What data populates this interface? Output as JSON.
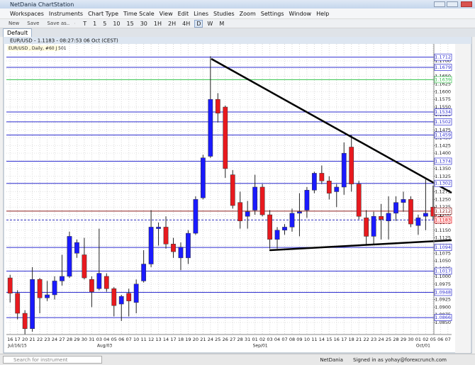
{
  "window_title": "NetDania ChartStation",
  "menu": [
    "Workspaces",
    "Instruments",
    "Chart Type",
    "Time Scale",
    "View",
    "Edit",
    "Lines",
    "Studies",
    "Zoom",
    "Settings",
    "Window",
    "Help"
  ],
  "toolbar": {
    "file_buttons": [
      "New",
      "Save",
      "Save as.."
    ],
    "timeframes": [
      "T",
      "1",
      "5",
      "10",
      "15",
      "30",
      "1H",
      "2H",
      "4H",
      "D",
      "W",
      "M"
    ]
  },
  "tab": "Default",
  "chart_data": {
    "type": "candlestick",
    "title": "EUR/USD - 1.1183 - 08:27:53 06 Oct (CEST)",
    "subtitle": "EUR/USD , Daily, #60 J 501",
    "categories": [
      "16",
      "17",
      "20",
      "21",
      "22",
      "23",
      "24",
      "27",
      "28",
      "29",
      "30",
      "31",
      "03",
      "04",
      "05",
      "06",
      "07",
      "10",
      "11",
      "12",
      "13",
      "14",
      "17",
      "18",
      "19",
      "20",
      "21",
      "24",
      "25",
      "26",
      "27",
      "28",
      "31",
      "01",
      "02",
      "03",
      "04",
      "07",
      "08",
      "09",
      "10",
      "11",
      "14",
      "15",
      "16",
      "17",
      "18",
      "21",
      "22",
      "23",
      "24",
      "25",
      "28",
      "29",
      "30",
      "01",
      "02",
      "05",
      "06",
      "07"
    ],
    "month_labels": [
      "Jul/16/15",
      null,
      null,
      null,
      null,
      null,
      null,
      null,
      null,
      null,
      null,
      null,
      "Aug/03",
      null,
      null,
      null,
      null,
      null,
      null,
      null,
      null,
      null,
      null,
      null,
      null,
      null,
      null,
      null,
      null,
      null,
      null,
      null,
      null,
      "Sep/01",
      null,
      null,
      null,
      null,
      null,
      null,
      null,
      null,
      null,
      null,
      null,
      null,
      null,
      null,
      null,
      null,
      null,
      null,
      null,
      null,
      null,
      "Oct/01",
      null,
      null,
      null,
      null
    ],
    "series": {
      "open": [
        1.0995,
        1.0945,
        1.088,
        1.083,
        1.099,
        1.093,
        1.094,
        1.0985,
        1.1,
        1.1075,
        1.107,
        1.099,
        1.096,
        1.1,
        1.096,
        1.091,
        1.0945,
        1.0915,
        1.0985,
        1.104,
        1.1155,
        1.116,
        1.1105,
        1.106,
        1.106,
        1.114,
        1.1255,
        1.139,
        1.1575,
        1.155,
        1.133,
        1.124,
        1.1195,
        1.1215,
        1.129,
        1.12,
        1.112,
        1.115,
        1.116,
        1.1205,
        1.1215,
        1.128,
        1.1335,
        1.131,
        1.1275,
        1.129,
        1.142,
        1.13,
        1.119,
        1.113,
        1.1195,
        1.118,
        1.1205,
        1.124,
        1.125,
        1.1165,
        1.1195,
        1.1225,
        1.1195,
        null
      ],
      "high": [
        1.1005,
        1.0955,
        1.089,
        1.103,
        1.0995,
        1.0985,
        1.1,
        1.107,
        1.1145,
        1.112,
        1.1125,
        1.1,
        1.1155,
        1.101,
        1.0965,
        1.094,
        1.096,
        1.099,
        1.1085,
        1.1215,
        1.1175,
        1.1195,
        1.1125,
        1.111,
        1.115,
        1.126,
        1.1395,
        1.1715,
        1.1595,
        1.1555,
        1.1345,
        1.1275,
        1.1245,
        1.133,
        1.13,
        1.1215,
        1.116,
        1.117,
        1.122,
        1.127,
        1.129,
        1.134,
        1.136,
        1.1325,
        1.13,
        1.1435,
        1.146,
        1.131,
        1.1215,
        1.121,
        1.1235,
        1.126,
        1.126,
        1.1275,
        1.126,
        1.12,
        1.1315,
        1.1295,
        1.1215,
        null
      ],
      "low": [
        1.0915,
        1.086,
        1.081,
        1.082,
        1.088,
        1.092,
        1.0925,
        1.097,
        1.0995,
        1.106,
        1.099,
        1.09,
        1.0955,
        1.095,
        1.087,
        1.0855,
        1.087,
        1.088,
        1.098,
        1.103,
        1.11,
        1.109,
        1.106,
        1.102,
        1.104,
        1.1135,
        1.125,
        1.1385,
        1.15,
        1.132,
        1.122,
        1.1155,
        1.1155,
        1.12,
        1.1195,
        1.109,
        1.109,
        1.1135,
        1.1145,
        1.113,
        1.119,
        1.127,
        1.13,
        1.125,
        1.1225,
        1.1265,
        1.1275,
        1.1185,
        1.11,
        1.1105,
        1.112,
        1.112,
        1.118,
        1.121,
        1.116,
        1.1135,
        1.115,
        1.1185,
        1.117,
        null
      ],
      "close": [
        1.0945,
        1.088,
        1.083,
        1.099,
        1.093,
        1.094,
        1.0985,
        1.1,
        1.113,
        1.111,
        1.0995,
        1.095,
        1.101,
        1.096,
        1.0905,
        1.0935,
        1.092,
        1.0975,
        1.104,
        1.116,
        1.116,
        1.1105,
        1.108,
        1.1095,
        1.114,
        1.125,
        1.1385,
        1.1575,
        1.153,
        1.135,
        1.123,
        1.118,
        1.121,
        1.129,
        1.12,
        1.112,
        1.115,
        1.116,
        1.1205,
        1.121,
        1.128,
        1.1335,
        1.131,
        1.127,
        1.129,
        1.14,
        1.13,
        1.1195,
        1.113,
        1.1195,
        1.1185,
        1.1205,
        1.124,
        1.125,
        1.117,
        1.119,
        1.1205,
        1.1195,
        1.1183,
        null
      ]
    },
    "up_color": "#1a1aff",
    "down_color": "#e8191e",
    "ylim": [
      1.0811,
      1.1755
    ],
    "yticks": [
      {
        "value": 1.085,
        "label": "1.0850"
      },
      1.0875,
      {
        "value": 1.09,
        "label": "1.0900"
      },
      1.0925,
      {
        "value": 1.095,
        "label": "1.0950"
      },
      1.0975,
      {
        "value": 1.1,
        "label": "1.1000"
      },
      1.1025,
      {
        "value": 1.105,
        "label": "1.1050"
      },
      1.1075,
      {
        "value": 1.11,
        "label": "1.1100"
      },
      1.1125,
      {
        "value": 1.115,
        "label": "1.1150"
      },
      1.1175,
      {
        "value": 1.12,
        "label": "1.1200"
      },
      1.1225,
      {
        "value": 1.125,
        "label": "1.1250"
      },
      1.1275,
      {
        "value": 1.13,
        "label": "1.1300"
      },
      1.1325,
      {
        "value": 1.135,
        "label": "1.1350"
      },
      1.1375,
      {
        "value": 1.14,
        "label": "1.1400"
      },
      1.1425,
      {
        "value": 1.145,
        "label": "1.1450"
      },
      1.1475,
      {
        "value": 1.15,
        "label": "1.1500"
      },
      1.1525,
      {
        "value": 1.155,
        "label": "1.1550"
      },
      1.1575,
      {
        "value": 1.16,
        "label": "1.1600"
      },
      1.1625,
      {
        "value": 1.165,
        "label": "1.1650"
      },
      1.1675,
      {
        "value": 1.17,
        "label": "1.1700"
      }
    ],
    "grid": true,
    "levels": [
      {
        "value": 1.1712,
        "color": "#2f2fd0"
      },
      {
        "value": 1.1679,
        "color": "#2f2fd0"
      },
      {
        "value": 1.1639,
        "color": "#33c24a"
      },
      {
        "value": 1.1534,
        "color": "#2f2fd0"
      },
      {
        "value": 1.1502,
        "color": "#2f2fd0"
      },
      {
        "value": 1.1459,
        "color": "#2f2fd0"
      },
      {
        "value": 1.1374,
        "color": "#2f2fd0"
      },
      {
        "value": 1.1302,
        "color": "#2f2fd0"
      },
      {
        "value": 1.1212,
        "color": "#8c1c1c"
      },
      {
        "value": 1.1094,
        "color": "#2f2fd0"
      },
      {
        "value": 1.1017,
        "color": "#2f2fd0"
      },
      {
        "value": 1.0948,
        "color": "#2f2fd0"
      },
      {
        "value": 1.0866,
        "color": "#2f2fd0"
      }
    ],
    "current_price": 1.1183,
    "current_color": "#e8191e"
  },
  "status": {
    "search": "Search for instrument",
    "brand": "NetDania",
    "signed_in": "Signed in as yohay@forexcrunch.com"
  }
}
